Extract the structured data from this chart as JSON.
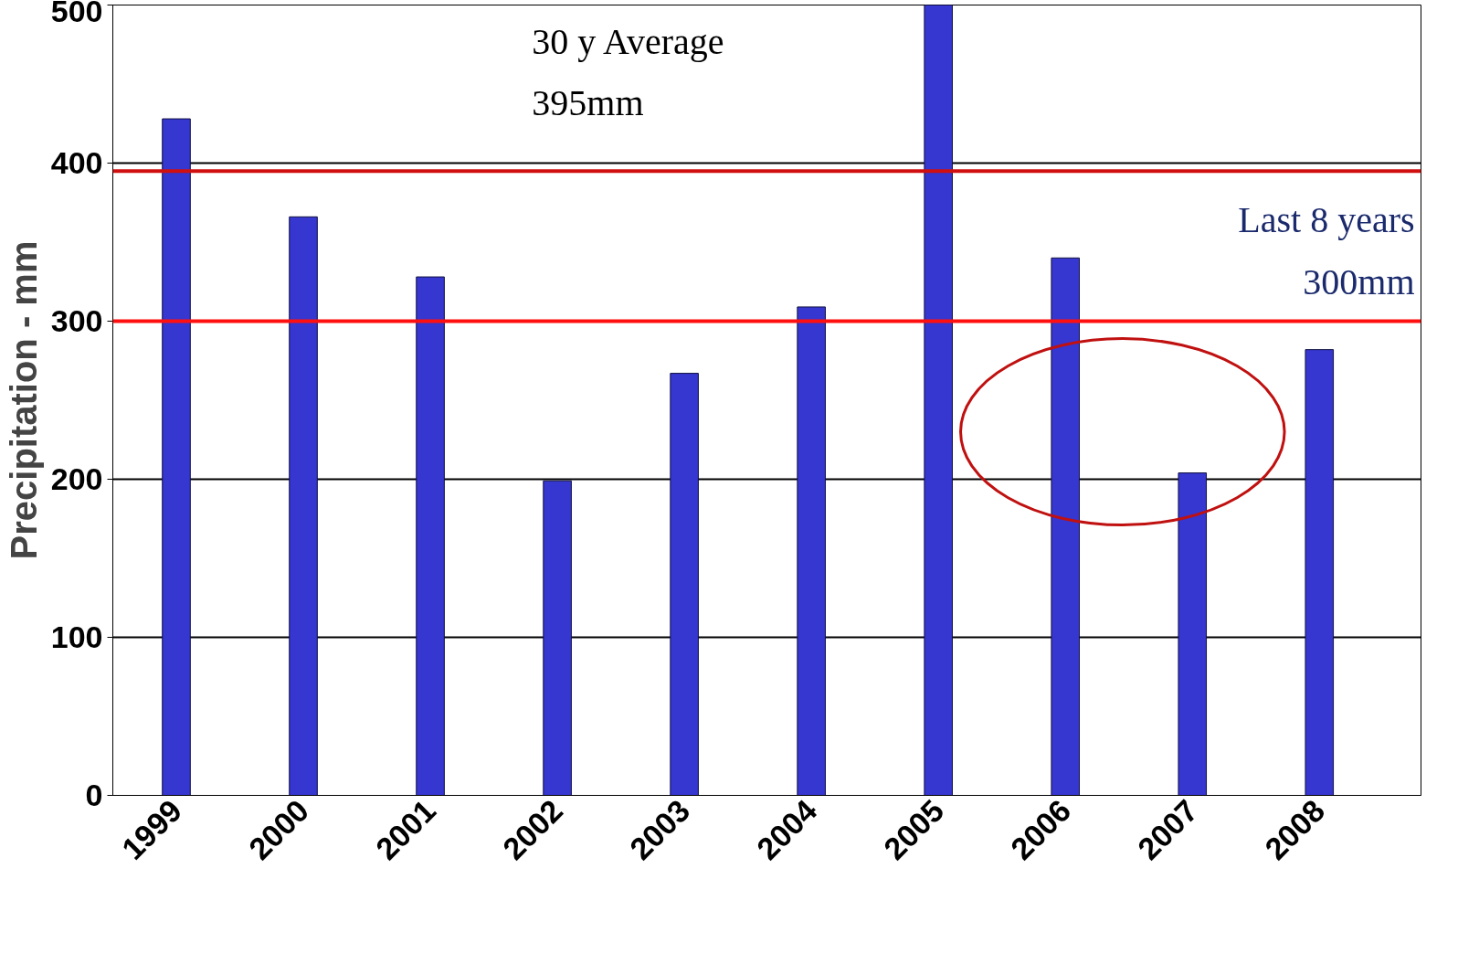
{
  "chart_data": {
    "type": "bar",
    "ylabel": "Precipitation - mm",
    "categories": [
      "1999",
      "2000",
      "2001",
      "2002",
      "2003",
      "2004",
      "2005",
      "2006",
      "2007",
      "2008"
    ],
    "values": [
      428,
      366,
      328,
      199,
      267,
      309,
      500,
      340,
      204,
      282
    ],
    "color": "#3636d0",
    "ylim": [
      0,
      500
    ],
    "yticks": [
      0,
      100,
      200,
      300,
      400,
      500
    ],
    "grid": "y",
    "ref_lines": [
      {
        "axis": "y",
        "value": 395,
        "label": "30 y Average\n395mm",
        "color": "#d01010"
      },
      {
        "axis": "y",
        "value": 300,
        "label": "Last 8 years\n300mm",
        "color": "#ff1010"
      }
    ]
  }
}
